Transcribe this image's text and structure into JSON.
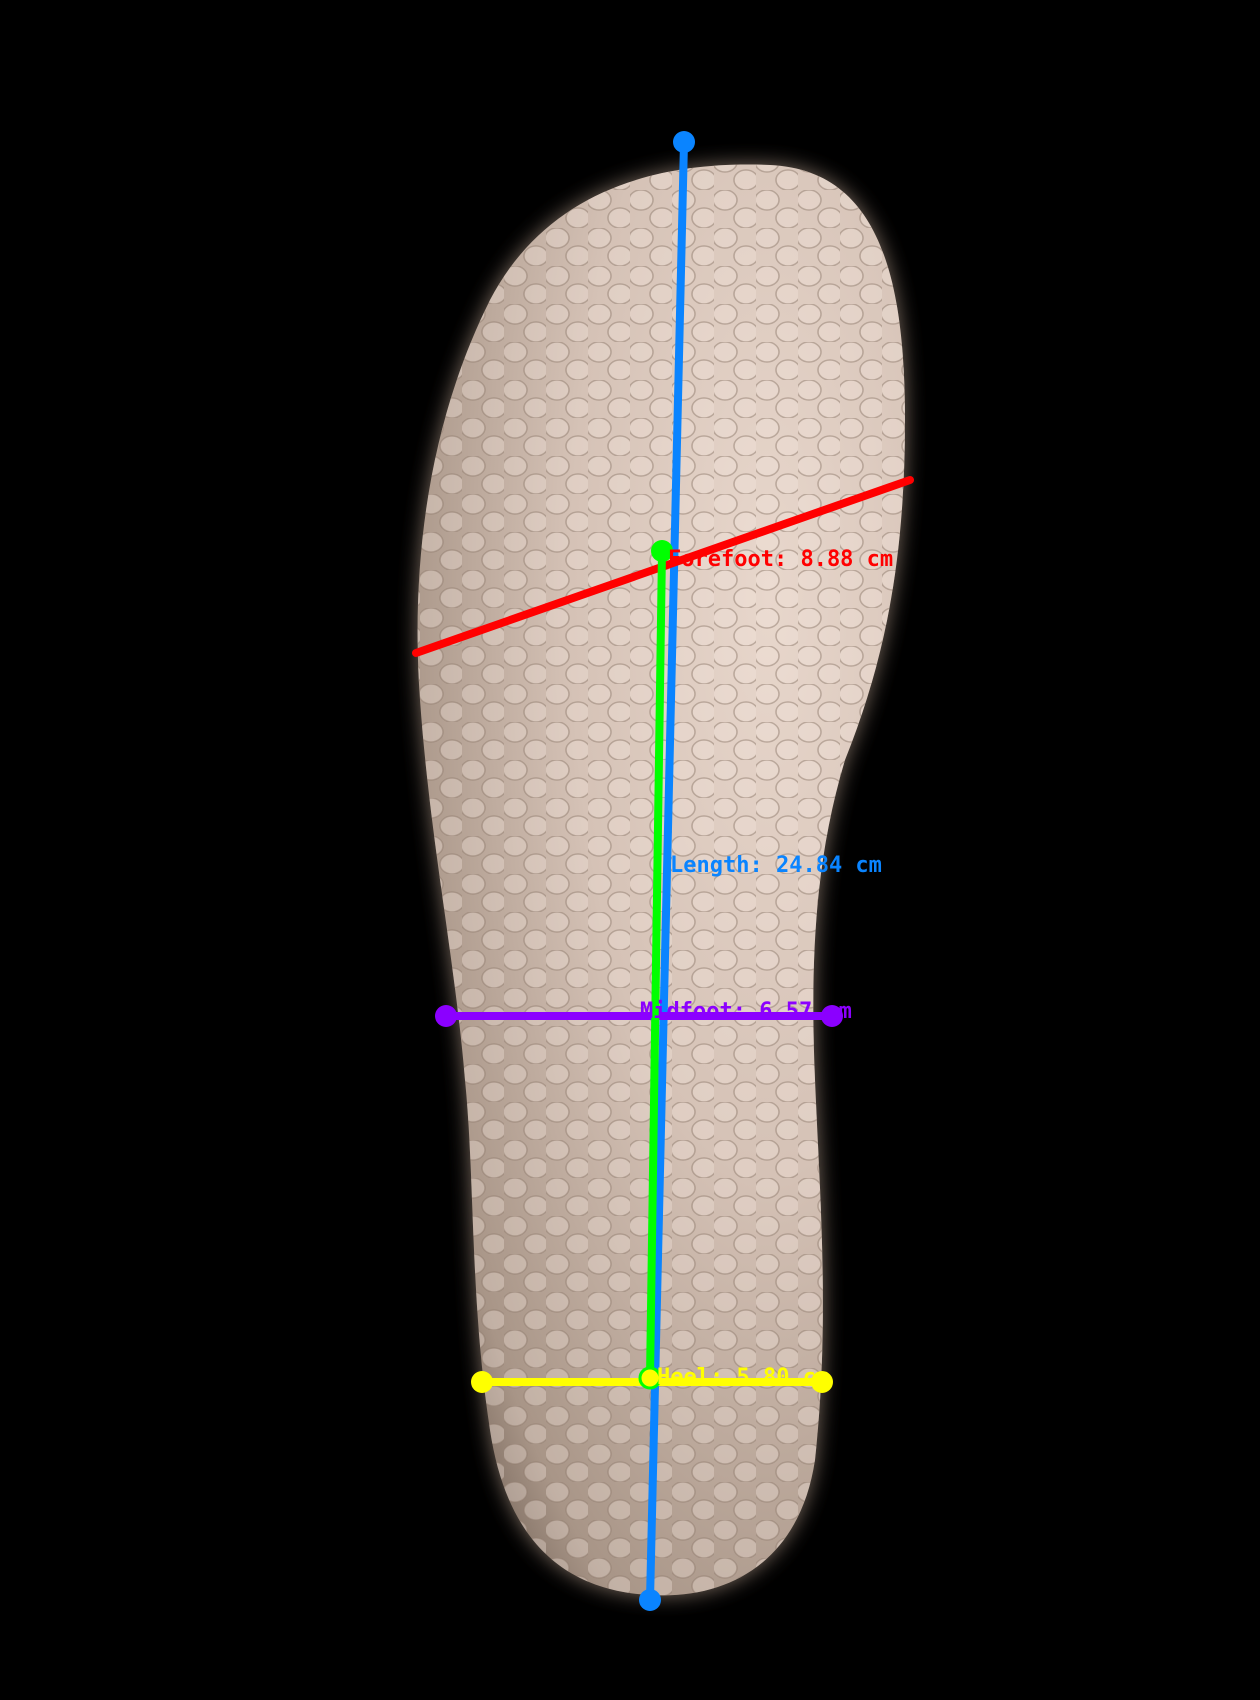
{
  "measurements": {
    "forefoot": {
      "label": "Forefoot: 8.88 cm",
      "color": "#ff0000"
    },
    "length": {
      "label": "Length: 24.84 cm",
      "color": "#0a84ff"
    },
    "midfoot": {
      "label": "Midfoot: 6.57 cm",
      "color": "#8b00ff"
    },
    "heel": {
      "label": "Heel: 5.80 cm",
      "color": "#ffff00"
    },
    "arch": {
      "color": "#00ff00"
    }
  }
}
